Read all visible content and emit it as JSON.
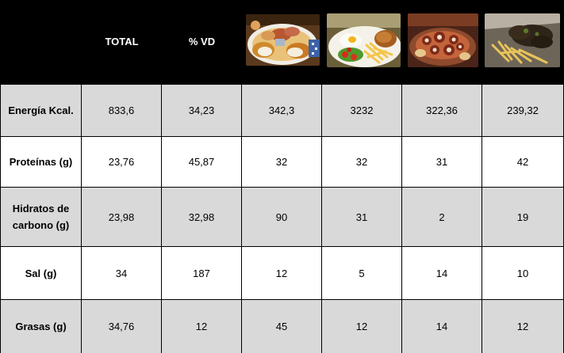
{
  "table": {
    "headers": {
      "total": "TOTAL",
      "vd": "% VD"
    },
    "dish_icons": [
      "fried-platter-photo-icon",
      "fried-egg-fries-salad-photo-icon",
      "octopus-potatoes-photo-icon",
      "meat-with-fries-photo-icon"
    ],
    "rows": [
      {
        "label": "Energía Kcal.",
        "values": [
          "833,6",
          "34,23",
          "342,3",
          "3232",
          "322,36",
          "239,32"
        ]
      },
      {
        "label": "Proteínas (g)",
        "values": [
          "23,76",
          "45,87",
          "32",
          "32",
          "31",
          "42"
        ]
      },
      {
        "label": "Hidratos de carbono (g)",
        "values": [
          "23,98",
          "32,98",
          "90",
          "31",
          "2",
          "19"
        ]
      },
      {
        "label": "Sal (g)",
        "values": [
          "34",
          "187",
          "12",
          "5",
          "14",
          "10"
        ]
      },
      {
        "label": "Grasas (g)",
        "values": [
          "34,76",
          "12",
          "45",
          "12",
          "14",
          "12"
        ]
      }
    ]
  },
  "colors": {
    "header_bg": "#000000",
    "row_gray": "#d9d9d9",
    "row_white": "#ffffff",
    "grid_line": "#000000"
  }
}
